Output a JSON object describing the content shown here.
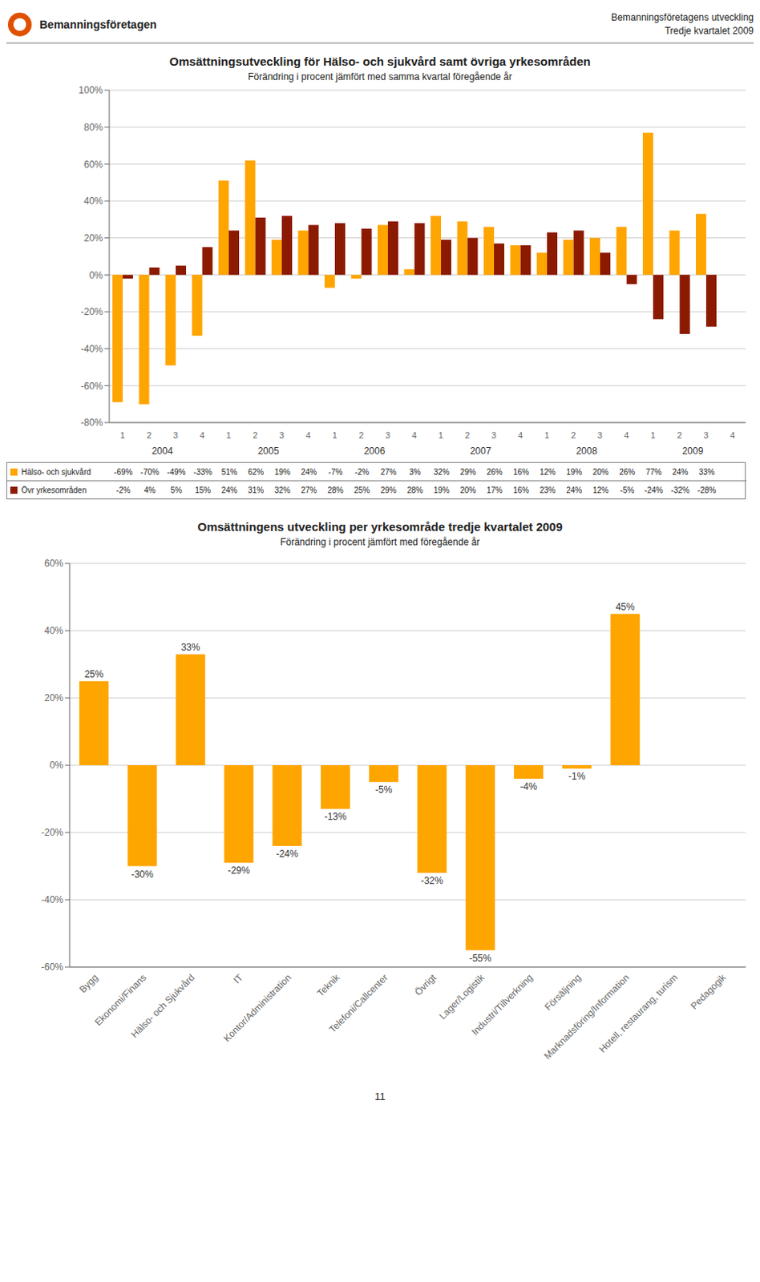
{
  "header": {
    "title": "Bemanningsföretagen",
    "annotations": [
      "Bemanningsföretagens utveckling",
      "Tredje kvartalet 2009"
    ],
    "color": "#E05000"
  },
  "page_number": "11",
  "chart_data": [
    {
      "type": "bar",
      "title": "Omsättningsutveckling för Hälso- och sjukvård samt övriga yrkesområden",
      "subtitle": "Förändring i procent jämfört med samma kvartal föregående år",
      "categories": [
        "1",
        "2",
        "3",
        "4",
        "1",
        "2",
        "3",
        "4",
        "1",
        "2",
        "3",
        "4",
        "1",
        "2",
        "3",
        "4",
        "1",
        "2",
        "3",
        "4",
        "1",
        "2",
        "3",
        "4"
      ],
      "annotations": [
        "2004",
        "2005",
        "2006",
        "2007",
        "2008",
        "2009"
      ],
      "series": [
        {
          "name": "Hälso- och sjukvård",
          "color": "#FFA500",
          "values": [
            -69,
            -70,
            -49,
            -33,
            51,
            62,
            19,
            24,
            -7,
            -2,
            27,
            3,
            32,
            29,
            26,
            16,
            12,
            19,
            20,
            26,
            77,
            24,
            33,
            null
          ],
          "value_labels": [
            "-69%",
            "-70%",
            "-49%",
            "-33%",
            "51%",
            "62%",
            "19%",
            "24%",
            "-7%",
            "-2%",
            "27%",
            "3%",
            "32%",
            "29%",
            "26%",
            "16%",
            "12%",
            "19%",
            "20%",
            "26%",
            "77%",
            "24%",
            "33%",
            null
          ]
        },
        {
          "name": "Övr yrkesområden",
          "color": "#8B1A00",
          "values": [
            -2,
            4,
            5,
            15,
            24,
            31,
            32,
            27,
            28,
            25,
            29,
            28,
            19,
            20,
            17,
            16,
            23,
            24,
            12,
            -5,
            -24,
            -32,
            -28,
            null
          ],
          "value_labels": [
            "-2%",
            "4%",
            "5%",
            "15%",
            "24%",
            "31%",
            "32%",
            "27%",
            "28%",
            "25%",
            "29%",
            "28%",
            "19%",
            "20%",
            "17%",
            "16%",
            "23%",
            "24%",
            "12%",
            "-5%",
            "-24%",
            "-32%",
            "-28%",
            null
          ]
        }
      ],
      "ylim": [
        -80,
        100
      ],
      "yticks": [
        {
          "value": -80,
          "label": "-80%"
        },
        {
          "value": -60,
          "label": "-60%"
        },
        {
          "value": -40,
          "label": "-40%"
        },
        {
          "value": -20,
          "label": "-20%"
        },
        {
          "value": 0,
          "label": "0%"
        },
        {
          "value": 20,
          "label": "20%"
        },
        {
          "value": 40,
          "label": "40%"
        },
        {
          "value": 60,
          "label": "60%"
        },
        {
          "value": 80,
          "label": "80%"
        },
        {
          "value": 100,
          "label": "100%"
        }
      ],
      "grid": true
    },
    {
      "type": "bar",
      "title": "Omsättningens utveckling per yrkesområde tredje kvartalet 2009",
      "subtitle": "Förändring i procent jämfört med föregående år",
      "categories": [
        "Bygg",
        "Ekonomi/Finans",
        "Hälso- och Sjukvård",
        "IT",
        "Kontor/Administration",
        "Teknik",
        "Telefoni/Callcenter",
        "Övrigt",
        "Lager/Logistik",
        "Industri/Tillverkning",
        "Försäljning",
        "Marknadsföring/Information",
        "Hotell, restaurang, turism",
        "Pedagogik"
      ],
      "values": [
        25,
        -30,
        33,
        -29,
        -24,
        -13,
        -5,
        -32,
        -55,
        -4,
        -1,
        45,
        0,
        0
      ],
      "value_labels": [
        "25%",
        "-30%",
        "33%",
        "-29%",
        "-24%",
        "-13%",
        "-5%",
        "-32%",
        "-55%",
        "-4%",
        "-1%",
        "45%",
        null,
        null
      ],
      "color": "#FFA500",
      "ylim": [
        -60,
        60
      ],
      "yticks": [
        {
          "value": -60,
          "label": "-60%"
        },
        {
          "value": -40,
          "label": "-40%"
        },
        {
          "value": -20,
          "label": "-20%"
        },
        {
          "value": 0,
          "label": "0%"
        },
        {
          "value": 20,
          "label": "20%"
        },
        {
          "value": 40,
          "label": "40%"
        },
        {
          "value": 60,
          "label": "60%"
        }
      ],
      "grid": true,
      "data_labels": true
    }
  ]
}
